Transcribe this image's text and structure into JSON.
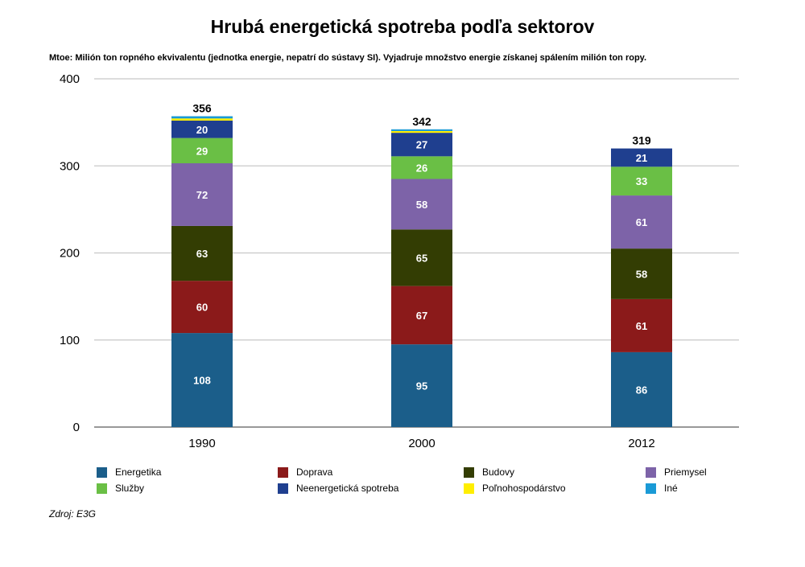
{
  "chart_data": {
    "type": "bar",
    "stacked": true,
    "title": "Hrubá energetická spotreba podľa sektorov",
    "subtitle": "Mtoe: Milión ton ropného ekvivalentu (jednotka energie, nepatrí do sústavy SI). Vyjadruje množstvo energie získanej spálením milión ton ropy.",
    "categories": [
      "1990",
      "2000",
      "2012"
    ],
    "totals": [
      "356",
      "342",
      "319"
    ],
    "ylim": [
      0,
      400
    ],
    "yticks": [
      "0",
      "100",
      "200",
      "300",
      "400"
    ],
    "grid": true,
    "series": [
      {
        "name": "Energetika",
        "color": "#1b5e8a",
        "values": [
          108,
          95,
          86
        ],
        "labels": [
          "108",
          "95",
          "86"
        ]
      },
      {
        "name": "Doprava",
        "color": "#8b1a1a",
        "values": [
          60,
          67,
          61
        ],
        "labels": [
          "60",
          "67",
          "61"
        ]
      },
      {
        "name": "Budovy",
        "color": "#333d03",
        "values": [
          63,
          65,
          58
        ],
        "labels": [
          "63",
          "65",
          "58"
        ]
      },
      {
        "name": "Priemysel",
        "color": "#7d63a8",
        "values": [
          72,
          58,
          61
        ],
        "labels": [
          "72",
          "58",
          "61"
        ]
      },
      {
        "name": "Služby",
        "color": "#6abf45",
        "values": [
          29,
          26,
          33
        ],
        "labels": [
          "29",
          "26",
          "33"
        ]
      },
      {
        "name": "Neenergetická spotreba",
        "color": "#1f3f8f",
        "values": [
          20,
          27,
          21
        ],
        "labels": [
          "20",
          "27",
          "21"
        ]
      },
      {
        "name": "Poľnohospodárstvo",
        "color": "#ffee00",
        "values": [
          2.5,
          2,
          0
        ],
        "labels": []
      },
      {
        "name": "Iné",
        "color": "#1a9ad6",
        "values": [
          2.5,
          2,
          0
        ],
        "labels": []
      }
    ],
    "legend_position": "bottom"
  },
  "source": "Zdroj: E3G"
}
